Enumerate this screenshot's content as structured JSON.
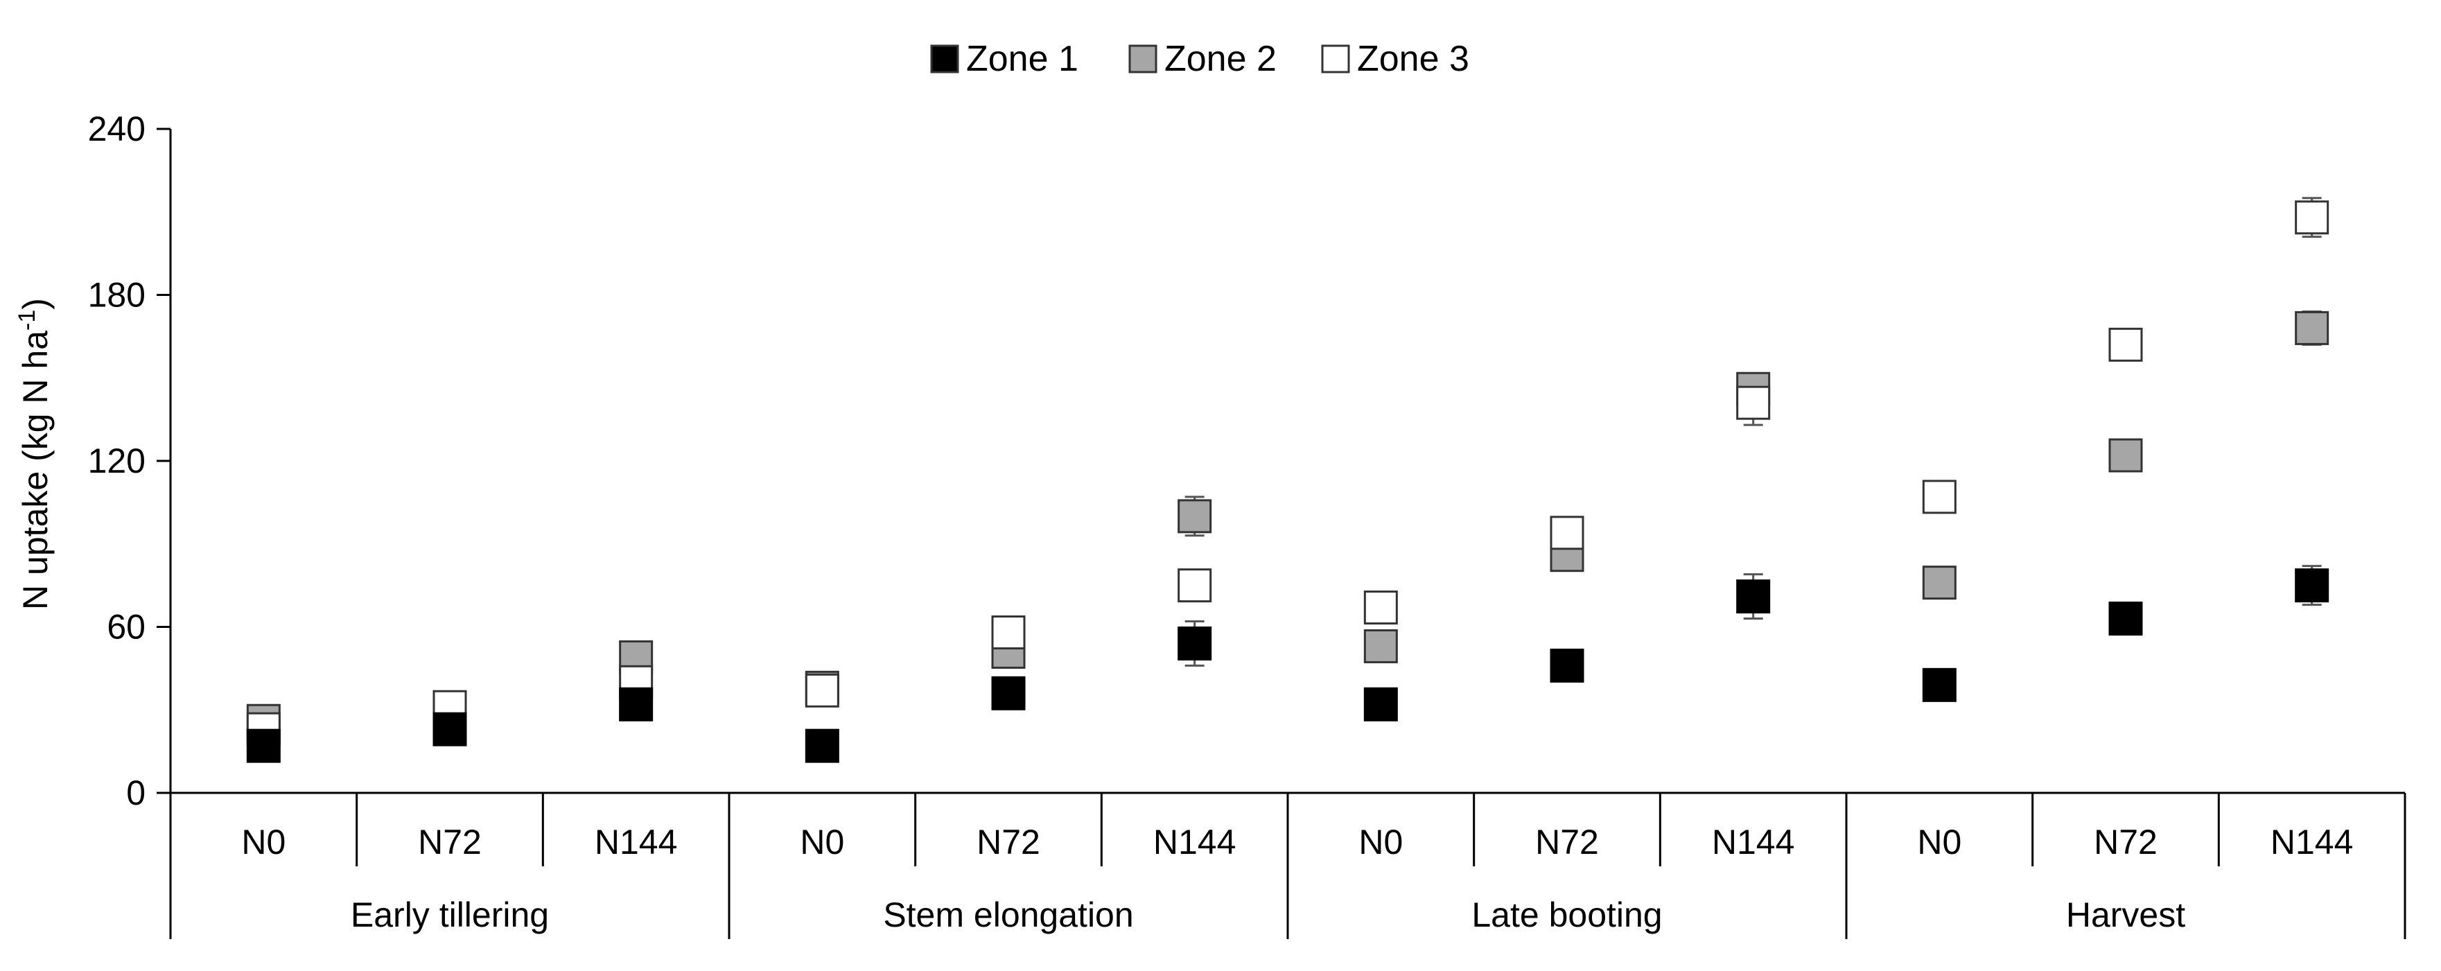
{
  "chart_data": {
    "type": "scatter",
    "ylabel": "N uptake (kg N ha",
    "ylabel_sup": "-1",
    "ylabel_end": ")",
    "ylim": [
      0,
      240
    ],
    "yticks": [
      "0",
      "60",
      "120",
      "180",
      "240"
    ],
    "yticks_values": [
      0,
      60,
      120,
      180,
      240
    ],
    "grid": false,
    "legend_position": "top-center",
    "groups": [
      "Early tillering",
      "Stem elongation",
      "Late booting",
      "Harvest"
    ],
    "categories": [
      "N0",
      "N72",
      "N144",
      "N0",
      "N72",
      "N144",
      "N0",
      "N72",
      "N144",
      "N0",
      "N72",
      "N144"
    ],
    "series": [
      {
        "name": "Zone 1",
        "color": "#000000",
        "values": [
          17,
          23,
          32,
          17,
          36,
          54,
          32,
          46,
          71,
          39,
          63,
          75
        ],
        "errors": [
          2,
          2,
          3,
          2,
          3,
          8,
          4,
          3,
          8,
          4,
          3,
          7
        ]
      },
      {
        "name": "Zone 2",
        "color": "#a6a6a6",
        "values": [
          26,
          25,
          49,
          38,
          51,
          100,
          53,
          86,
          146,
          76,
          122,
          168
        ],
        "errors": [
          2,
          2,
          3,
          2,
          4,
          7,
          3,
          4,
          5,
          3,
          5,
          6
        ]
      },
      {
        "name": "Zone 3",
        "color": "#ffffff",
        "values": [
          23,
          31,
          40,
          37,
          58,
          75,
          67,
          94,
          141,
          107,
          162,
          208
        ],
        "errors": [
          2,
          2,
          3,
          2,
          3,
          5,
          3,
          3,
          8,
          3,
          3,
          7
        ]
      }
    ]
  }
}
